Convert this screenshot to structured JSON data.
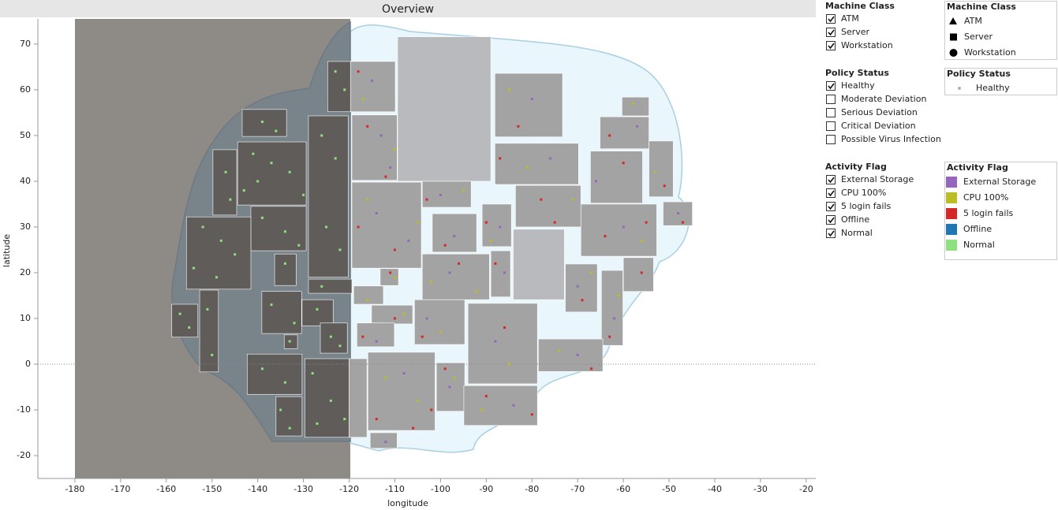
{
  "chart_data": {
    "type": "scatter",
    "title": "Overview",
    "x_label": "longitude",
    "y_label": "latitude",
    "xlim": [
      -188.1,
      -17.9
    ],
    "ylim": [
      -25,
      75.5
    ],
    "xticks": [
      -180,
      -170,
      -160,
      -150,
      -140,
      -130,
      -120,
      -110,
      -100,
      -90,
      -80,
      -70,
      -60,
      -50,
      -40,
      -30,
      -20
    ],
    "yticks": [
      -20,
      -10,
      0,
      10,
      20,
      30,
      40,
      50,
      60,
      70
    ],
    "zero_line": true,
    "legend_title": "Activity Flag",
    "regions": [
      {
        "x": [
          -124.7,
          -119.7
        ],
        "y": [
          55.2,
          66.2
        ],
        "color": "#5f5c5a"
      },
      {
        "x": [
          -143.4,
          -133.7
        ],
        "y": [
          49.8,
          55.7
        ],
        "color": "#5f5c5a"
      },
      {
        "x": [
          -128.9,
          -120.2
        ],
        "y": [
          19.0,
          54.3
        ],
        "color": "#5f5c5a"
      },
      {
        "x": [
          -144.4,
          -129.4
        ],
        "y": [
          34.8,
          48.6
        ],
        "color": "#5f5c5a"
      },
      {
        "x": [
          -149.8,
          -144.6
        ],
        "y": [
          32.6,
          46.9
        ],
        "color": "#5f5c5a"
      },
      {
        "x": [
          -141.5,
          -129.4
        ],
        "y": [
          24.8,
          34.5
        ],
        "color": "#5f5c5a"
      },
      {
        "x": [
          -155.6,
          -141.5
        ],
        "y": [
          16.4,
          32.2
        ],
        "color": "#5f5c5a"
      },
      {
        "x": [
          -136.3,
          -131.6
        ],
        "y": [
          17.2,
          24.1
        ],
        "color": "#5f5c5a"
      },
      {
        "x": [
          -128.9,
          -119.4
        ],
        "y": [
          15.5,
          18.6
        ],
        "color": "#5f5c5a"
      },
      {
        "x": [
          -139.1,
          -130.4
        ],
        "y": [
          6.7,
          15.9
        ],
        "color": "#5f5c5a"
      },
      {
        "x": [
          -130.3,
          -123.5
        ],
        "y": [
          8.4,
          14.1
        ],
        "color": "#5f5c5a"
      },
      {
        "x": [
          -126.3,
          -120.4
        ],
        "y": [
          2.4,
          9.0
        ],
        "color": "#5f5c5a"
      },
      {
        "x": [
          -158.8,
          -153.1
        ],
        "y": [
          5.9,
          13.1
        ],
        "color": "#5f5c5a"
      },
      {
        "x": [
          -152.7,
          -148.6
        ],
        "y": [
          -1.7,
          16.2
        ],
        "color": "#5f5c5a"
      },
      {
        "x": [
          -134.2,
          -131.3
        ],
        "y": [
          3.4,
          6.4
        ],
        "color": "#5f5c5a"
      },
      {
        "x": [
          -142.3,
          -130.3
        ],
        "y": [
          -6.6,
          2.2
        ],
        "color": "#5f5c5a"
      },
      {
        "x": [
          -136.0,
          -130.3
        ],
        "y": [
          -15.7,
          -7.1
        ],
        "color": "#5f5c5a"
      },
      {
        "x": [
          -129.7,
          -120.0
        ],
        "y": [
          -16.0,
          1.2
        ],
        "color": "#5f5c5a"
      },
      {
        "x": [
          -120.0,
          -116.1
        ],
        "y": [
          -16.0,
          1.2
        ],
        "color": "#a3a3a3"
      },
      {
        "x": [
          -109.4,
          -89.0
        ],
        "y": [
          40.0,
          71.6
        ],
        "color": "#b8babd"
      },
      {
        "x": [
          -119.7,
          -109.9
        ],
        "y": [
          55.2,
          66.2
        ],
        "color": "#a3a3a3"
      },
      {
        "x": [
          -119.4,
          -109.5
        ],
        "y": [
          40.2,
          54.5
        ],
        "color": "#a3a3a3"
      },
      {
        "x": [
          -88.1,
          -73.3
        ],
        "y": [
          49.7,
          63.6
        ],
        "color": "#a3a3a3"
      },
      {
        "x": [
          -60.3,
          -54.4
        ],
        "y": [
          54.3,
          58.4
        ],
        "color": "#a3a3a3"
      },
      {
        "x": [
          -65.1,
          -54.4
        ],
        "y": [
          47.1,
          54.1
        ],
        "color": "#a3a3a3"
      },
      {
        "x": [
          -88.1,
          -69.8
        ],
        "y": [
          39.3,
          48.3
        ],
        "color": "#a3a3a3"
      },
      {
        "x": [
          -67.2,
          -55.8
        ],
        "y": [
          35.2,
          46.6
        ],
        "color": "#a3a3a3"
      },
      {
        "x": [
          -54.4,
          -49.1
        ],
        "y": [
          36.6,
          48.8
        ],
        "color": "#a3a3a3"
      },
      {
        "x": [
          -119.4,
          -104.2
        ],
        "y": [
          21.0,
          39.8
        ],
        "color": "#a3a3a3"
      },
      {
        "x": [
          -104.0,
          -93.3
        ],
        "y": [
          34.3,
          40.0
        ],
        "color": "#a3a3a3"
      },
      {
        "x": [
          -83.6,
          -69.3
        ],
        "y": [
          30.0,
          39.1
        ],
        "color": "#a3a3a3"
      },
      {
        "x": [
          -69.3,
          -52.7
        ],
        "y": [
          23.6,
          35.0
        ],
        "color": "#a3a3a3"
      },
      {
        "x": [
          -51.3,
          -44.9
        ],
        "y": [
          30.3,
          35.5
        ],
        "color": "#a3a3a3"
      },
      {
        "x": [
          -101.8,
          -92.1
        ],
        "y": [
          24.5,
          32.9
        ],
        "color": "#a3a3a3"
      },
      {
        "x": [
          -90.9,
          -84.5
        ],
        "y": [
          25.7,
          35.0
        ],
        "color": "#a3a3a3"
      },
      {
        "x": [
          -84.1,
          -72.9
        ],
        "y": [
          14.1,
          29.5
        ],
        "color": "#b8babd"
      },
      {
        "x": [
          -104.0,
          -89.3
        ],
        "y": [
          14.1,
          24.1
        ],
        "color": "#a3a3a3"
      },
      {
        "x": [
          -89.0,
          -84.7
        ],
        "y": [
          14.7,
          24.8
        ],
        "color": "#a3a3a3"
      },
      {
        "x": [
          -60.0,
          -53.4
        ],
        "y": [
          15.9,
          23.3
        ],
        "color": "#a3a3a3"
      },
      {
        "x": [
          -72.7,
          -65.7
        ],
        "y": [
          11.4,
          21.9
        ],
        "color": "#a3a3a3"
      },
      {
        "x": [
          -64.8,
          -60.1
        ],
        "y": [
          4.1,
          20.5
        ],
        "color": "#a3a3a3"
      },
      {
        "x": [
          -113.2,
          -109.2
        ],
        "y": [
          17.2,
          20.9
        ],
        "color": "#a3a3a3"
      },
      {
        "x": [
          -119.0,
          -112.5
        ],
        "y": [
          13.1,
          17.1
        ],
        "color": "#a3a3a3"
      },
      {
        "x": [
          -115.1,
          -106.1
        ],
        "y": [
          8.8,
          12.9
        ],
        "color": "#a3a3a3"
      },
      {
        "x": [
          -105.7,
          -94.7
        ],
        "y": [
          4.3,
          14.1
        ],
        "color": "#a3a3a3"
      },
      {
        "x": [
          -118.3,
          -110.1
        ],
        "y": [
          3.8,
          9.0
        ],
        "color": "#a3a3a3"
      },
      {
        "x": [
          -94.0,
          -78.8
        ],
        "y": [
          -4.3,
          13.3
        ],
        "color": "#a3a3a3"
      },
      {
        "x": [
          -78.6,
          -64.5
        ],
        "y": [
          -1.6,
          5.5
        ],
        "color": "#a3a3a3"
      },
      {
        "x": [
          -115.9,
          -101.2
        ],
        "y": [
          -14.5,
          2.6
        ],
        "color": "#a3a3a3"
      },
      {
        "x": [
          -100.9,
          -94.7
        ],
        "y": [
          -10.3,
          0.3
        ],
        "color": "#a3a3a3"
      },
      {
        "x": [
          -94.9,
          -78.8
        ],
        "y": [
          -13.4,
          -4.7
        ],
        "color": "#a3a3a3"
      },
      {
        "x": [
          -115.4,
          -109.5
        ],
        "y": [
          -18.4,
          -15.0
        ],
        "color": "#a3a3a3"
      }
    ],
    "series": [
      {
        "name": "External Storage",
        "color": "#9467bd",
        "x": [
          -115,
          -113,
          -111,
          -114,
          -107,
          -100,
          -97,
          -87,
          -80,
          -76,
          -66,
          -60,
          -57,
          -98,
          -86,
          -70,
          -62,
          -103,
          -114,
          -108,
          -98,
          -88,
          -84,
          -70,
          -48,
          -112
        ],
        "y": [
          62,
          50,
          43,
          33,
          27,
          37,
          28,
          30,
          58,
          45,
          40,
          30,
          52,
          20,
          20,
          17,
          10,
          10,
          5,
          -2,
          -5,
          5,
          -9,
          2,
          33,
          -17
        ]
      },
      {
        "name": "CPU 100%",
        "color": "#bcbd22",
        "x": [
          -117,
          -110,
          -116,
          -105,
          -95,
          -89,
          -85,
          -81,
          -71,
          -56,
          -53,
          -102,
          -92,
          -67,
          -61,
          -108,
          -100,
          -116,
          -105,
          -112,
          -97,
          -85,
          -91,
          -74,
          -58,
          -110
        ],
        "y": [
          58,
          47,
          36,
          31,
          38,
          27,
          60,
          43,
          36,
          27,
          42,
          18,
          16,
          20,
          15,
          11,
          7,
          14,
          -8,
          -3,
          -3,
          0,
          -10,
          3,
          57,
          19
        ]
      },
      {
        "name": "5 login fails",
        "color": "#d62728",
        "x": [
          -118,
          -116,
          -112,
          -118,
          -110,
          -103,
          -99,
          -90,
          -83,
          -87,
          -78,
          -75,
          -64,
          -55,
          -63,
          -60,
          -51,
          -96,
          -88,
          -69,
          -63,
          -56,
          -111,
          -117,
          -104,
          -110,
          -102,
          -114,
          -99,
          -90,
          -80,
          -86,
          -67,
          -47,
          -106
        ],
        "y": [
          64,
          52,
          41,
          30,
          25,
          36,
          26,
          31,
          52,
          45,
          36,
          31,
          28,
          31,
          50,
          44,
          39,
          22,
          22,
          14,
          6,
          20,
          20,
          6,
          6,
          10,
          -10,
          -12,
          -1,
          -7,
          -11,
          8,
          -1,
          31,
          -14
        ]
      },
      {
        "name": "Offline",
        "color": "#1f77b4",
        "x": [],
        "y": []
      },
      {
        "name": "Normal",
        "color": "#90e07f",
        "x": [
          -123,
          -121,
          -139,
          -136,
          -126,
          -123,
          -141,
          -137,
          -133,
          -140,
          -147,
          -146,
          -139,
          -134,
          -131,
          -152,
          -148,
          -145,
          -154,
          -149,
          -134,
          -125,
          -122,
          -126,
          -137,
          -132,
          -127,
          -124,
          -122,
          -157,
          -155,
          -151,
          -150,
          -133,
          -139,
          -134,
          -128,
          -124,
          -135,
          -133,
          -127,
          -121,
          -143,
          -130
        ],
        "y": [
          64,
          60,
          53,
          51,
          50,
          45,
          46,
          44,
          42,
          40,
          42,
          36,
          32,
          29,
          26,
          30,
          27,
          24,
          21,
          19,
          22,
          30,
          25,
          17,
          13,
          9,
          12,
          6,
          4,
          11,
          8,
          12,
          2,
          5,
          -1,
          -4,
          -2,
          -8,
          -10,
          -14,
          -13,
          -12,
          38,
          37
        ]
      }
    ]
  },
  "filters": [
    {
      "title": "Machine Class",
      "items": [
        {
          "label": "ATM",
          "checked": true
        },
        {
          "label": "Server",
          "checked": true
        },
        {
          "label": "Workstation",
          "checked": true
        }
      ]
    },
    {
      "title": "Policy Status",
      "items": [
        {
          "label": "Healthy",
          "checked": true
        },
        {
          "label": "Moderate Deviation",
          "checked": false
        },
        {
          "label": "Serious Deviation",
          "checked": false
        },
        {
          "label": "Critical Deviation",
          "checked": false
        },
        {
          "label": "Possible Virus Infection",
          "checked": false
        }
      ]
    },
    {
      "title": "Activity Flag",
      "items": [
        {
          "label": "External Storage",
          "checked": true
        },
        {
          "label": "CPU 100%",
          "checked": true
        },
        {
          "label": "5 login fails",
          "checked": true
        },
        {
          "label": "Offline",
          "checked": true
        },
        {
          "label": "Normal",
          "checked": true
        }
      ]
    }
  ],
  "legends": {
    "machine_class": {
      "title": "Machine Class",
      "items": [
        "ATM",
        "Server",
        "Workstation"
      ]
    },
    "policy_status": {
      "title": "Policy Status",
      "items": [
        "Healthy"
      ]
    }
  }
}
